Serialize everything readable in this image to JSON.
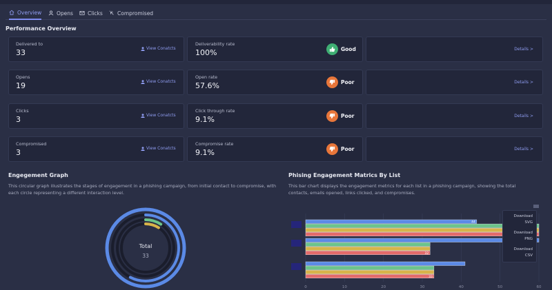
{
  "tabs": [
    {
      "label": "Overview",
      "icon": "home-icon",
      "active": true
    },
    {
      "label": "Opens",
      "icon": "user-icon",
      "active": false
    },
    {
      "label": "Clicks",
      "icon": "mail-icon",
      "active": false
    },
    {
      "label": "Compromised",
      "icon": "cursor-click-icon",
      "active": false
    }
  ],
  "performance": {
    "title": "Performance Overview",
    "rows": [
      {
        "label": "Delivered to",
        "value": "33",
        "link": "View Conatcts",
        "rate_label": "Deliverability rate",
        "rate_value": "100%",
        "status": "Good",
        "status_color": "#3fae73",
        "details": "Details >"
      },
      {
        "label": "Opens",
        "value": "19",
        "link": "View Conatcts",
        "rate_label": "Open rate",
        "rate_value": "57.6%",
        "status": "Poor",
        "status_color": "#e8763a",
        "details": "Details >"
      },
      {
        "label": "Clicks",
        "value": "3",
        "link": "View Conatcts",
        "rate_label": "Click through rate",
        "rate_value": "9.1%",
        "status": "Poor",
        "status_color": "#e8763a",
        "details": "Details >"
      },
      {
        "label": "Compromised",
        "value": "3",
        "link": "View Conatcts",
        "rate_label": "Compromise rate",
        "rate_value": "9.1%",
        "status": "Poor",
        "status_color": "#e8763a",
        "details": "Details >"
      }
    ]
  },
  "engagement_graph": {
    "title": "Engegement Graph",
    "description": "This circular graph illustrates the stages of engagement in a phishing campaign, from initial contact to compromise, with each circle representing a different interaction level.",
    "center_label": "Total",
    "center_value": "33",
    "total": 33,
    "rings": [
      {
        "value": 33,
        "color": "#5b8ae6"
      },
      {
        "value": 19,
        "color": "#5b8ae6"
      },
      {
        "value": 3,
        "color": "#6cc48a"
      },
      {
        "value": 3,
        "color": "#d7b44a"
      }
    ]
  },
  "metrics_chart": {
    "title": "Phising Engagement Matrics By List",
    "description": "This bar chart displays the engagement metrics for each list in a phishing campaign, showing the total contacts, emails opened, links clicked, and compromises.",
    "download_options": [
      "Download SVG",
      "Download PNG",
      "Download CSV"
    ]
  },
  "chart_data": {
    "type": "bar",
    "orientation": "horizontal",
    "categories": [
      "",
      "",
      ""
    ],
    "series": [
      {
        "values": [
          44,
          60,
          41
        ],
        "color": "#5b8ae6"
      },
      {
        "values": [
          60,
          32,
          33
        ],
        "color": "#6cc48a"
      },
      {
        "values": [
          60,
          32,
          33
        ],
        "color": "#d7b44a"
      },
      {
        "values": [
          60,
          32,
          33
        ],
        "color": "#e36a6a"
      }
    ],
    "data_labels": [
      "44",
      "",
      "41",
      "",
      "",
      "32",
      "",
      "",
      "33"
    ],
    "xlim": [
      0,
      60
    ],
    "xticks": [
      "0",
      "10",
      "20",
      "30",
      "40",
      "50",
      "60"
    ],
    "grid": true
  }
}
